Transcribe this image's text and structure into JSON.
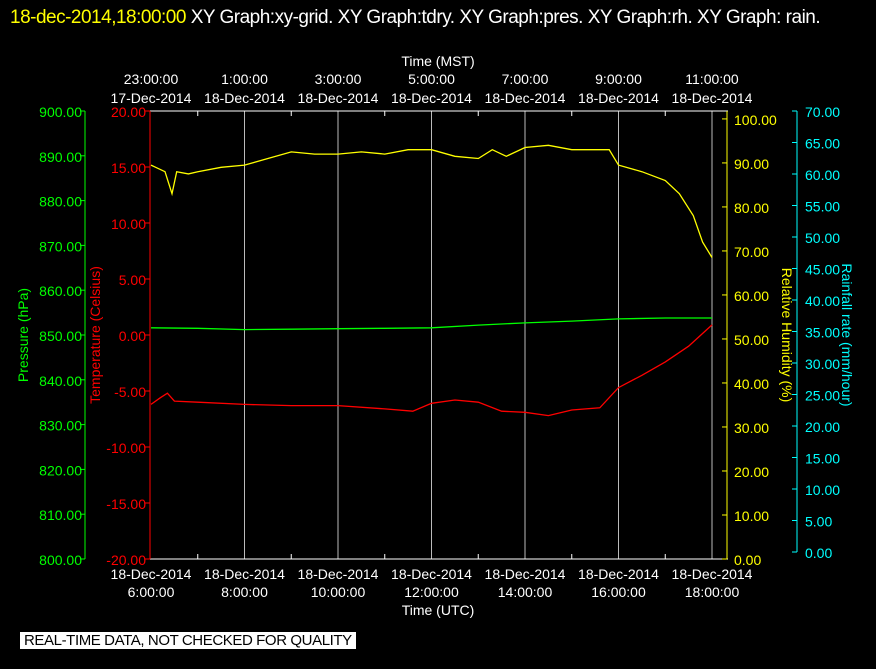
{
  "title": {
    "timestamp": "18-dec-2014,18:00:00",
    "text": "  XY Graph:xy-grid.  XY Graph:tdry.  XY Graph:pres.  XY Graph:rh.  XY Graph: rain."
  },
  "banner": "REAL-TIME DATA, NOT CHECKED FOR QUALITY",
  "colors": {
    "pressure": "#00ff00",
    "temperature": "#ff0000",
    "humidity": "#ffff00",
    "rain": "#00ffff",
    "grid": "#ffffff"
  },
  "chart_data": {
    "type": "line",
    "top_axis": {
      "label": "Time (MST)",
      "ticks": [
        {
          "time": "23:00:00",
          "date": "17-Dec-2014"
        },
        {
          "time": "1:00:00",
          "date": "18-Dec-2014"
        },
        {
          "time": "3:00:00",
          "date": "18-Dec-2014"
        },
        {
          "time": "5:00:00",
          "date": "18-Dec-2014"
        },
        {
          "time": "7:00:00",
          "date": "18-Dec-2014"
        },
        {
          "time": "9:00:00",
          "date": "18-Dec-2014"
        },
        {
          "time": "11:00:00",
          "date": "18-Dec-2014"
        }
      ]
    },
    "bottom_axis": {
      "label": "Time (UTC)",
      "range_hours": [
        6,
        18
      ],
      "ticks": [
        {
          "date": "18-Dec-2014",
          "time": "6:00:00"
        },
        {
          "date": "18-Dec-2014",
          "time": "8:00:00"
        },
        {
          "date": "18-Dec-2014",
          "time": "10:00:00"
        },
        {
          "date": "18-Dec-2014",
          "time": "12:00:00"
        },
        {
          "date": "18-Dec-2014",
          "time": "14:00:00"
        },
        {
          "date": "18-Dec-2014",
          "time": "16:00:00"
        },
        {
          "date": "18-Dec-2014",
          "time": "18:00:00"
        }
      ]
    },
    "y_axes": {
      "pressure": {
        "label": "Pressure (hPa)",
        "range": [
          800,
          900
        ],
        "ticks": [
          "900.00",
          "890.00",
          "880.00",
          "870.00",
          "860.00",
          "850.00",
          "840.00",
          "830.00",
          "820.00",
          "810.00",
          "800.00"
        ]
      },
      "temperature": {
        "label": "Temperature (Celsius)",
        "range": [
          -20,
          20
        ],
        "ticks": [
          "20.00",
          "15.00",
          "10.00",
          "5.00",
          "0.00",
          "-5.00",
          "-10.00",
          "-15.00",
          "-20.00"
        ]
      },
      "humidity": {
        "label": "Relative Humidity (%)",
        "range": [
          0,
          101.8
        ],
        "ticks": [
          "100.00",
          "90.00",
          "80.00",
          "70.00",
          "60.00",
          "50.00",
          "40.00",
          "30.00",
          "20.00",
          "10.00",
          "0.00"
        ]
      },
      "rain": {
        "label": "Rainfall rate (mm/hour)",
        "range": [
          0,
          70
        ],
        "ticks": [
          "70.00",
          "65.00",
          "60.00",
          "55.00",
          "50.00",
          "45.00",
          "40.00",
          "35.00",
          "30.00",
          "25.00",
          "20.00",
          "15.00",
          "10.00",
          "5.00",
          "0.00"
        ]
      }
    },
    "series": [
      {
        "name": "tdry",
        "axis": "temperature",
        "x": [
          6,
          6.2,
          6.35,
          6.5,
          7,
          8,
          9,
          10,
          11,
          11.6,
          12,
          12.5,
          13,
          13.5,
          14,
          14.5,
          15,
          15.6,
          16,
          16.5,
          17,
          17.5,
          18
        ],
        "y": [
          -6.2,
          -5.6,
          -5.2,
          -5.9,
          -6.0,
          -6.2,
          -6.3,
          -6.3,
          -6.6,
          -6.8,
          -6.1,
          -5.8,
          -6.0,
          -6.8,
          -6.9,
          -7.2,
          -6.7,
          -6.5,
          -4.7,
          -3.6,
          -2.4,
          -1.0,
          0.9
        ]
      },
      {
        "name": "pres",
        "axis": "pressure",
        "x": [
          6,
          7,
          8,
          9,
          10,
          11,
          12,
          13,
          14,
          15,
          16,
          17,
          18
        ],
        "y": [
          851.6,
          851.5,
          851.2,
          851.3,
          851.4,
          851.5,
          851.6,
          852.2,
          852.7,
          853.1,
          853.6,
          853.8,
          853.8
        ]
      },
      {
        "name": "rh",
        "axis": "humidity",
        "x": [
          6,
          6.1,
          6.3,
          6.45,
          6.55,
          6.8,
          7,
          7.5,
          8,
          8.5,
          9,
          9.5,
          10,
          10.5,
          11,
          11.5,
          12,
          12.5,
          13,
          13.3,
          13.6,
          14,
          14.5,
          15,
          15.5,
          15.8,
          16,
          16.5,
          17,
          17.3,
          17.6,
          17.8,
          18
        ],
        "y": [
          89.5,
          89,
          88,
          83,
          88,
          87.5,
          88,
          89,
          89.5,
          91,
          92.5,
          92,
          92,
          92.5,
          92,
          93,
          93,
          91.5,
          91,
          93,
          91.5,
          93.5,
          94,
          93,
          93,
          93,
          89.5,
          88,
          86,
          83,
          78,
          72,
          68.5
        ]
      },
      {
        "name": "rain",
        "axis": "rain",
        "x": [],
        "y": []
      }
    ]
  }
}
